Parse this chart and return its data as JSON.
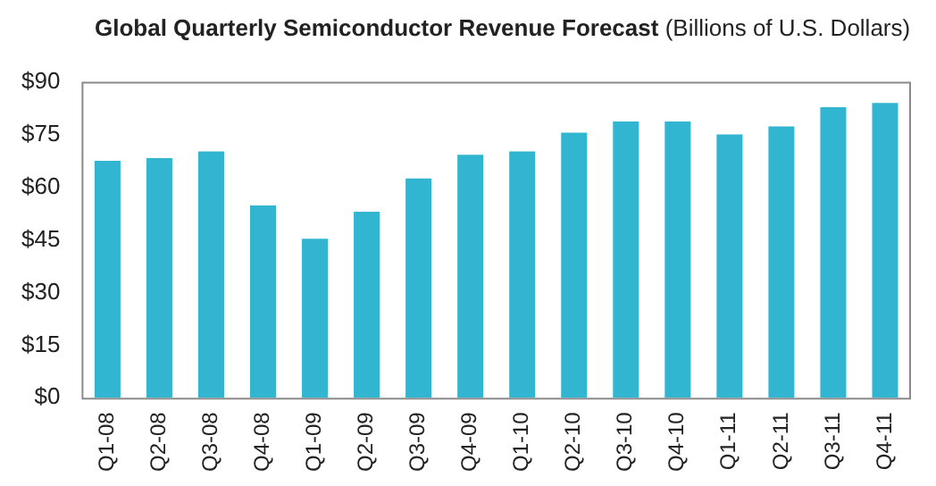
{
  "chart_data": {
    "type": "bar",
    "title": "Global Quarterly Semiconductor Revenue Forecast",
    "subtitle": "(Billions of U.S. Dollars)",
    "categories": [
      "Q1-08",
      "Q2-08",
      "Q3-08",
      "Q4-08",
      "Q1-09",
      "Q2-09",
      "Q3-09",
      "Q4-09",
      "Q1-10",
      "Q2-10",
      "Q3-10",
      "Q4-10",
      "Q1-11",
      "Q2-11",
      "Q3-11",
      "Q4-11"
    ],
    "values": [
      67.5,
      68.3,
      70.2,
      54.8,
      45.3,
      53,
      62.5,
      69.2,
      70.2,
      75.5,
      78.7,
      78.7,
      75,
      77.3,
      82.8,
      84
    ],
    "color": "#31b5d1",
    "ylim": [
      0,
      90
    ],
    "yticks": [
      {
        "value": 0,
        "label": "$0"
      },
      {
        "value": 15,
        "label": "$15"
      },
      {
        "value": 30,
        "label": "$30"
      },
      {
        "value": 45,
        "label": "$45"
      },
      {
        "value": 60,
        "label": "$60"
      },
      {
        "value": 75,
        "label": "$75"
      },
      {
        "value": 90,
        "label": "$90"
      }
    ],
    "grid": false,
    "legend": false
  }
}
